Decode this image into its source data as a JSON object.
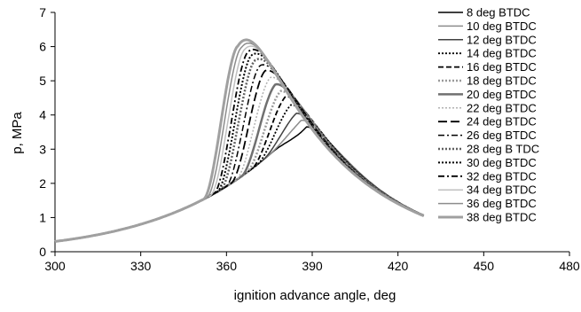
{
  "chart_data": {
    "type": "line",
    "title": "",
    "xlabel": "ignition advance angle, deg",
    "ylabel": "p, MPa",
    "xlim": [
      300,
      480
    ],
    "ylim": [
      0,
      7
    ],
    "xticks": [
      300,
      330,
      360,
      390,
      420,
      450,
      480
    ],
    "yticks": [
      0,
      1,
      2,
      3,
      4,
      5,
      6,
      7
    ],
    "grid": false,
    "legend_position": "right",
    "series": [
      {
        "name": "8 deg BTDC",
        "color": "#000000",
        "dash": "solid",
        "width": 1.5,
        "peak_x": 388.0,
        "peak_y": 3.65
      },
      {
        "name": "10 deg BTDC",
        "color": "#8c8c8c",
        "dash": "solid",
        "width": 1.5,
        "peak_x": 386.2,
        "peak_y": 3.85
      },
      {
        "name": "12 deg BTDC",
        "color": "#404040",
        "dash": "solid",
        "width": 1.5,
        "peak_x": 384.4,
        "peak_y": 4.05
      },
      {
        "name": "14 deg BTDC",
        "color": "#000000",
        "dash": "dot",
        "width": 1.8,
        "peak_x": 382.6,
        "peak_y": 4.3
      },
      {
        "name": "16 deg BTDC",
        "color": "#000000",
        "dash": "dash",
        "width": 1.8,
        "peak_x": 380.8,
        "peak_y": 4.55
      },
      {
        "name": "18 deg BTDC",
        "color": "#9a9a9a",
        "dash": "dot",
        "width": 2.5,
        "peak_x": 379.0,
        "peak_y": 4.7
      },
      {
        "name": "20 deg BTDC",
        "color": "#707070",
        "dash": "solid",
        "width": 2.5,
        "peak_x": 377.2,
        "peak_y": 4.9
      },
      {
        "name": "22 deg BTDC",
        "color": "#b0b0b0",
        "dash": "dot",
        "width": 1.5,
        "peak_x": 375.4,
        "peak_y": 5.1
      },
      {
        "name": "24 deg BTDC",
        "color": "#000000",
        "dash": "longdash",
        "width": 1.8,
        "peak_x": 373.6,
        "peak_y": 5.3
      },
      {
        "name": "26 deg BTDC",
        "color": "#000000",
        "dash": "dashdot",
        "width": 1.5,
        "peak_x": 371.8,
        "peak_y": 5.45
      },
      {
        "name": "28 deg B TDC",
        "color": "#606060",
        "dash": "dot",
        "width": 2.5,
        "peak_x": 370.0,
        "peak_y": 5.6
      },
      {
        "name": "30 deg BTDC",
        "color": "#000000",
        "dash": "dot",
        "width": 2.0,
        "peak_x": 368.8,
        "peak_y": 5.75
      },
      {
        "name": "32 deg BTDC",
        "color": "#000000",
        "dash": "dashdot",
        "width": 1.8,
        "peak_x": 367.6,
        "peak_y": 5.85
      },
      {
        "name": "34 deg BTDC",
        "color": "#c0c0c0",
        "dash": "solid",
        "width": 1.5,
        "peak_x": 366.4,
        "peak_y": 5.92
      },
      {
        "name": "36 deg BTDC",
        "color": "#8c8c8c",
        "dash": "solid",
        "width": 1.5,
        "peak_x": 365.2,
        "peak_y": 5.97
      },
      {
        "name": "38 deg BTDC",
        "color": "#a0a0a0",
        "dash": "solid",
        "width": 3.0,
        "peak_x": 364.0,
        "peak_y": 6.02
      }
    ]
  }
}
